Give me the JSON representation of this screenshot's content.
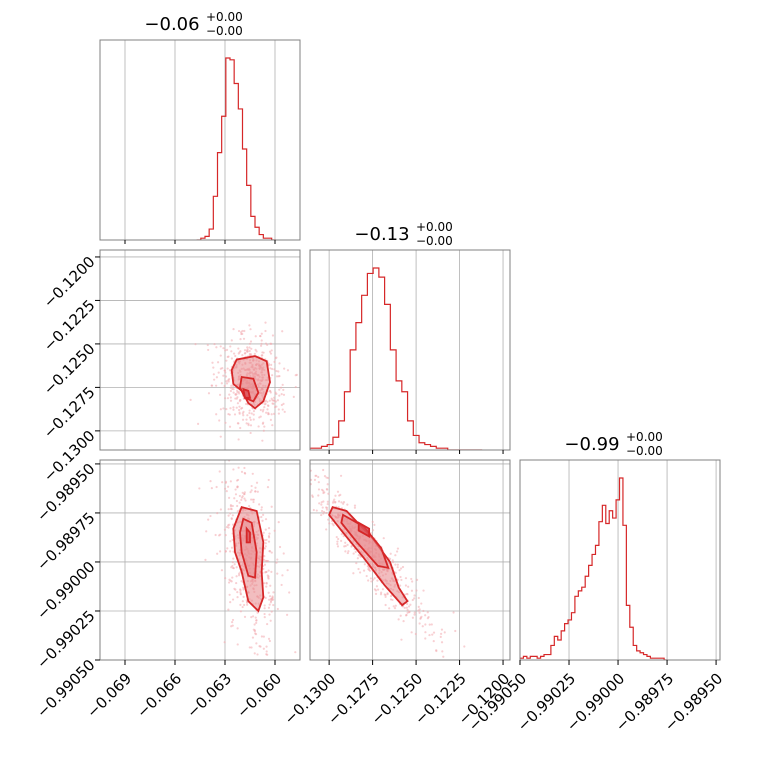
{
  "chart_data": {
    "type": "corner",
    "color": "#d62728",
    "grid": true,
    "parameters": [
      {
        "title": {
          "value": "−0.06",
          "plus": "+0.00",
          "minus": "−0.00"
        },
        "range": [
          -0.0705,
          -0.0585
        ],
        "ticks": [
          -0.069,
          -0.066,
          -0.063,
          -0.06
        ],
        "tick_labels": [
          "−0.069",
          "−0.066",
          "−0.063",
          "−0.060"
        ]
      },
      {
        "title": {
          "value": "−0.13",
          "plus": "+0.00",
          "minus": "−0.00"
        },
        "range": [
          -0.1311,
          -0.1196
        ],
        "ticks": [
          -0.13,
          -0.1275,
          -0.125,
          -0.1225,
          -0.12
        ],
        "tick_labels": [
          "−0.1300",
          "−0.1275",
          "−0.1250",
          "−0.1225",
          "−0.1200"
        ]
      },
      {
        "title": {
          "value": "−0.99",
          "plus": "+0.00",
          "minus": "−0.00"
        },
        "range": [
          -0.9905,
          -0.98948
        ],
        "ticks": [
          -0.9905,
          -0.99025,
          -0.99,
          -0.98975,
          -0.9895
        ],
        "tick_labels": [
          "−0.99050",
          "−0.99025",
          "−0.99000",
          "−0.98975",
          "−0.98950"
        ]
      }
    ],
    "histograms": [
      {
        "param": 0,
        "edges_start": -0.0647,
        "bin_width": 0.00025,
        "counts": [
          0,
          1,
          2,
          6,
          24,
          48,
          68,
          100,
          99,
          86,
          72,
          50,
          30,
          13,
          7,
          3,
          1,
          1,
          0
        ]
      },
      {
        "param": 1,
        "edges_start": -0.1311,
        "bin_width": 0.00033,
        "counts": [
          1,
          1,
          2,
          3,
          7,
          16,
          32,
          55,
          70,
          85,
          97,
          100,
          95,
          80,
          55,
          38,
          32,
          16,
          8,
          4,
          3,
          2,
          1,
          1,
          0,
          0,
          0,
          0,
          0,
          0
        ]
      },
      {
        "param": 2,
        "edges_start": -0.9905,
        "bin_width": 1.75e-05,
        "counts": [
          1,
          2,
          1,
          2,
          2,
          1,
          2,
          3,
          3,
          8,
          13,
          11,
          16,
          20,
          22,
          26,
          35,
          38,
          40,
          46,
          52,
          58,
          63,
          76,
          85,
          75,
          82,
          78,
          88,
          100,
          74,
          30,
          18,
          8,
          5,
          4,
          3,
          2,
          1,
          1,
          1,
          1,
          0
        ]
      }
    ],
    "contours_2d": [
      {
        "x_param": 0,
        "y_param": 1,
        "outer": [
          [
            -0.0623,
            -0.1259
          ],
          [
            -0.0612,
            -0.1257
          ],
          [
            -0.0605,
            -0.126
          ],
          [
            -0.0603,
            -0.1272
          ],
          [
            -0.0607,
            -0.1283
          ],
          [
            -0.0612,
            -0.1287
          ],
          [
            -0.0616,
            -0.1284
          ],
          [
            -0.062,
            -0.1277
          ],
          [
            -0.0625,
            -0.1273
          ],
          [
            -0.0626,
            -0.1265
          ]
        ],
        "inner": [
          [
            -0.062,
            -0.1269
          ],
          [
            -0.0613,
            -0.127
          ],
          [
            -0.061,
            -0.1278
          ],
          [
            -0.0613,
            -0.1283
          ],
          [
            -0.0618,
            -0.1281
          ],
          [
            -0.0621,
            -0.1275
          ]
        ],
        "core": [
          [
            -0.0619,
            -0.1276
          ],
          [
            -0.0616,
            -0.1277
          ],
          [
            -0.0615,
            -0.1281
          ],
          [
            -0.0618,
            -0.1281
          ]
        ]
      },
      {
        "x_param": 0,
        "y_param": 2,
        "outer": [
          [
            -0.062,
            -0.98972
          ],
          [
            -0.0611,
            -0.98974
          ],
          [
            -0.0607,
            -0.9899
          ],
          [
            -0.0608,
            -0.99005
          ],
          [
            -0.0607,
            -0.99018
          ],
          [
            -0.061,
            -0.99025
          ],
          [
            -0.0616,
            -0.9902
          ],
          [
            -0.062,
            -0.99005
          ],
          [
            -0.0624,
            -0.98995
          ],
          [
            -0.0625,
            -0.98983
          ]
        ],
        "inner": [
          [
            -0.0619,
            -0.98978
          ],
          [
            -0.0614,
            -0.9898
          ],
          [
            -0.0611,
            -0.98995
          ],
          [
            -0.0612,
            -0.99008
          ],
          [
            -0.0616,
            -0.99007
          ],
          [
            -0.062,
            -0.98995
          ],
          [
            -0.0621,
            -0.98985
          ]
        ],
        "core": [
          [
            -0.0617,
            -0.98983
          ],
          [
            -0.0615,
            -0.98985
          ],
          [
            -0.0615,
            -0.9899
          ],
          [
            -0.0617,
            -0.9899
          ]
        ]
      },
      {
        "x_param": 1,
        "y_param": 2,
        "outer": [
          [
            -0.1298,
            -0.98972
          ],
          [
            -0.129,
            -0.98974
          ],
          [
            -0.1275,
            -0.98988
          ],
          [
            -0.1265,
            -0.99
          ],
          [
            -0.126,
            -0.99013
          ],
          [
            -0.1255,
            -0.9902
          ],
          [
            -0.1258,
            -0.99022
          ],
          [
            -0.1268,
            -0.99012
          ],
          [
            -0.128,
            -0.98998
          ],
          [
            -0.1292,
            -0.98985
          ],
          [
            -0.13,
            -0.98976
          ]
        ],
        "inner": [
          [
            -0.1292,
            -0.98976
          ],
          [
            -0.128,
            -0.98982
          ],
          [
            -0.127,
            -0.98993
          ],
          [
            -0.1266,
            -0.99003
          ],
          [
            -0.1272,
            -0.99002
          ],
          [
            -0.1284,
            -0.9899
          ],
          [
            -0.1293,
            -0.9898
          ]
        ],
        "core": [
          [
            -0.1283,
            -0.9898
          ],
          [
            -0.1277,
            -0.98983
          ],
          [
            -0.1277,
            -0.98987
          ],
          [
            -0.1283,
            -0.98984
          ]
        ]
      }
    ]
  }
}
